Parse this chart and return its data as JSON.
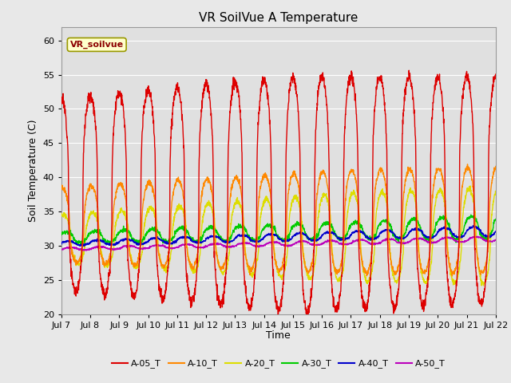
{
  "title": "VR SoilVue A Temperature",
  "ylabel": "Soil Temperature (C)",
  "xlabel": "Time",
  "annotation": "VR_soilvue",
  "ylim": [
    20,
    62
  ],
  "yticks": [
    20,
    25,
    30,
    35,
    40,
    45,
    50,
    55,
    60
  ],
  "x_labels": [
    "Jul 7",
    "Jul 8",
    "Jul 9",
    "Jul 10",
    "Jul 11",
    "Jul 12",
    "Jul 13",
    "Jul 14",
    "Jul 15",
    "Jul 16",
    "Jul 17",
    "Jul 18",
    "Jul 19",
    "Jul 20",
    "Jul 21",
    "Jul 22"
  ],
  "series_colors": {
    "A-05_T": "#dd0000",
    "A-10_T": "#ff8800",
    "A-20_T": "#dddd00",
    "A-30_T": "#00cc00",
    "A-40_T": "#0000cc",
    "A-50_T": "#bb00bb"
  },
  "legend_labels": [
    "A-05_T",
    "A-10_T",
    "A-20_T",
    "A-30_T",
    "A-40_T",
    "A-50_T"
  ],
  "background_color": "#e8e8e8",
  "plot_bg_color": "#e0e0e0",
  "grid_color": "#ffffff",
  "title_fontsize": 11,
  "label_fontsize": 9,
  "tick_fontsize": 8
}
